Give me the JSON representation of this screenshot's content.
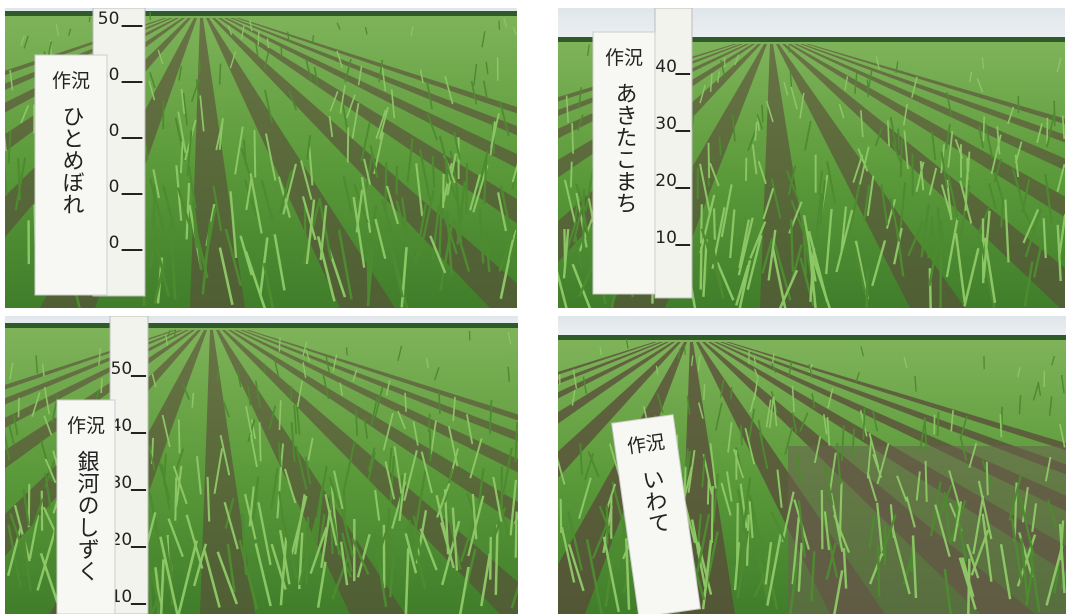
{
  "photos": [
    {
      "sign": {
        "heading": "作況",
        "variety": "ひとめぼれ"
      },
      "ruler": [
        "50",
        "40",
        "30",
        "20",
        "10"
      ]
    },
    {
      "sign": {
        "heading": "作況",
        "variety": "あきたこまち"
      },
      "ruler": [
        "40",
        "30",
        "20",
        "10"
      ]
    },
    {
      "sign": {
        "heading": "作況",
        "variety": "銀河のしずく"
      },
      "ruler": [
        "50",
        "40",
        "30",
        "20",
        "10"
      ]
    },
    {
      "sign": {
        "heading": "作況",
        "variety": "いわて"
      },
      "ruler": []
    }
  ]
}
